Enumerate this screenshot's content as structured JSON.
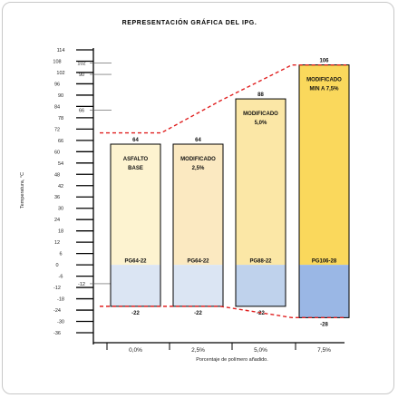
{
  "chart_data": {
    "type": "bar",
    "title": "REPRESENTACIÓN GRÁFICA DEL IPG.",
    "xlabel": "Porcentaje de polímero añadido.",
    "ylabel": "Temperatura, °C",
    "ylim": [
      -36,
      114
    ],
    "yticks": [
      114,
      108,
      102,
      96,
      90,
      84,
      78,
      72,
      66,
      60,
      54,
      48,
      42,
      36,
      30,
      24,
      18,
      12,
      6,
      0,
      -6,
      -12,
      -18,
      -24,
      -30,
      -36
    ],
    "categories": [
      "0,0%",
      "2,5%",
      "5,0%",
      "7,5%"
    ],
    "series": [
      {
        "values": [
          64,
          64,
          88,
          106
        ]
      }
    ],
    "low_values": [
      -22,
      -22,
      -22,
      -28
    ],
    "bar_text": [
      [
        "ASFALTO",
        "BASE"
      ],
      [
        "MODIFICADO",
        "2,5%"
      ],
      [
        "MODIFICADO",
        "5,0%"
      ],
      [
        "MODIFICADO",
        "MIN A 7,5%"
      ]
    ],
    "grade_labels": [
      "PG64-22",
      "PG64-22",
      "PG88-22",
      "PG106-28"
    ],
    "right_axis_ticks": [
      {
        "value": 106,
        "label": "106"
      },
      {
        "value": 88,
        "label": "88"
      },
      {
        "value": 64,
        "label": "64"
      },
      {
        "value": -22,
        "label": "-22"
      },
      {
        "value": -28,
        "label": "-28"
      }
    ],
    "colors": {
      "upper": [
        "#fdf3d0",
        "#fbe9c1",
        "#fbe7a6",
        "#fad85c"
      ],
      "lower": [
        "#dbe5f3",
        "#dbe5f3",
        "#bfd2ec",
        "#9ab7e5"
      ],
      "dashed": "#e02020"
    }
  }
}
